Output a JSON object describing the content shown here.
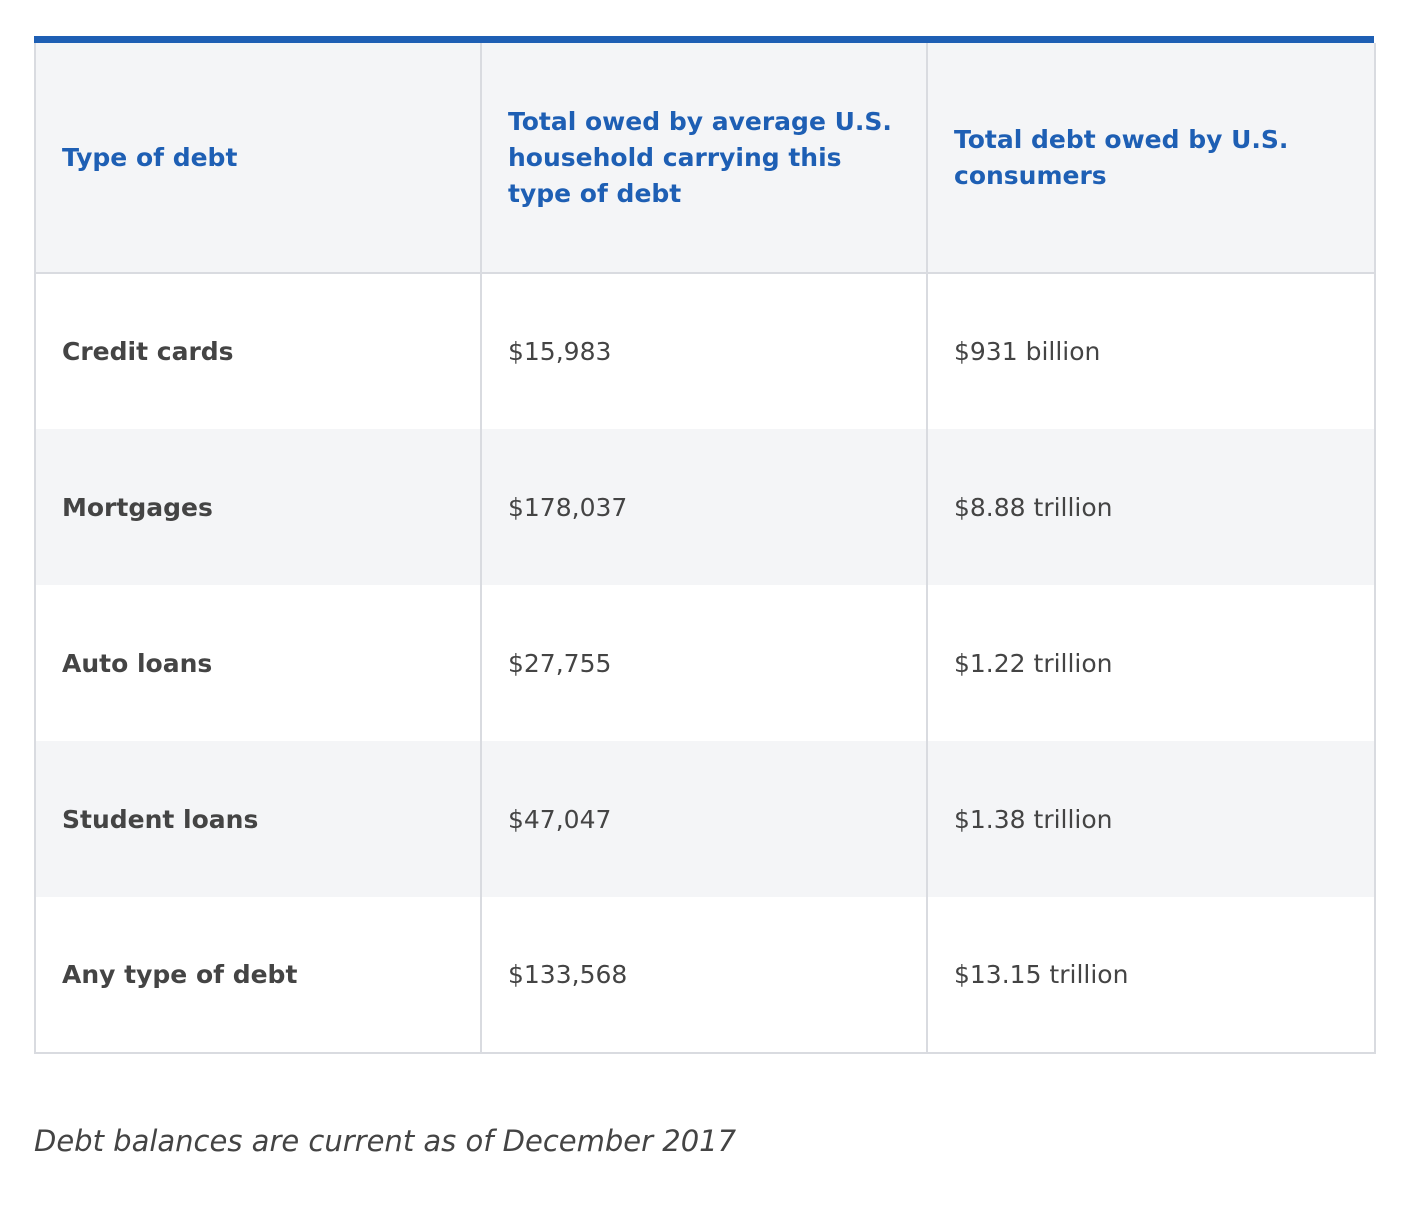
{
  "table": {
    "headers": [
      "Type of debt",
      "Total owed by average U.S. household carrying this type of debt",
      "Total debt owed by U.S. consumers"
    ],
    "rows": [
      {
        "type": "Credit cards",
        "household_total": "$15,983",
        "consumer_total": "$931 billion"
      },
      {
        "type": "Mortgages",
        "household_total": "$178,037",
        "consumer_total": "$8.88 trillion"
      },
      {
        "type": "Auto loans",
        "household_total": "$27,755",
        "consumer_total": "$1.22 trillion"
      },
      {
        "type": "Student loans",
        "household_total": "$47,047",
        "consumer_total": "$1.38 trillion"
      },
      {
        "type": "Any type of debt",
        "household_total": "$133,568",
        "consumer_total": "$13.15 trillion"
      }
    ]
  },
  "footnote": "Debt balances are current as of December 2017",
  "colors": {
    "accent": "#1e5fb4",
    "header_bg": "#f4f5f7",
    "text": "#444444",
    "border": "#d9dbe0"
  }
}
